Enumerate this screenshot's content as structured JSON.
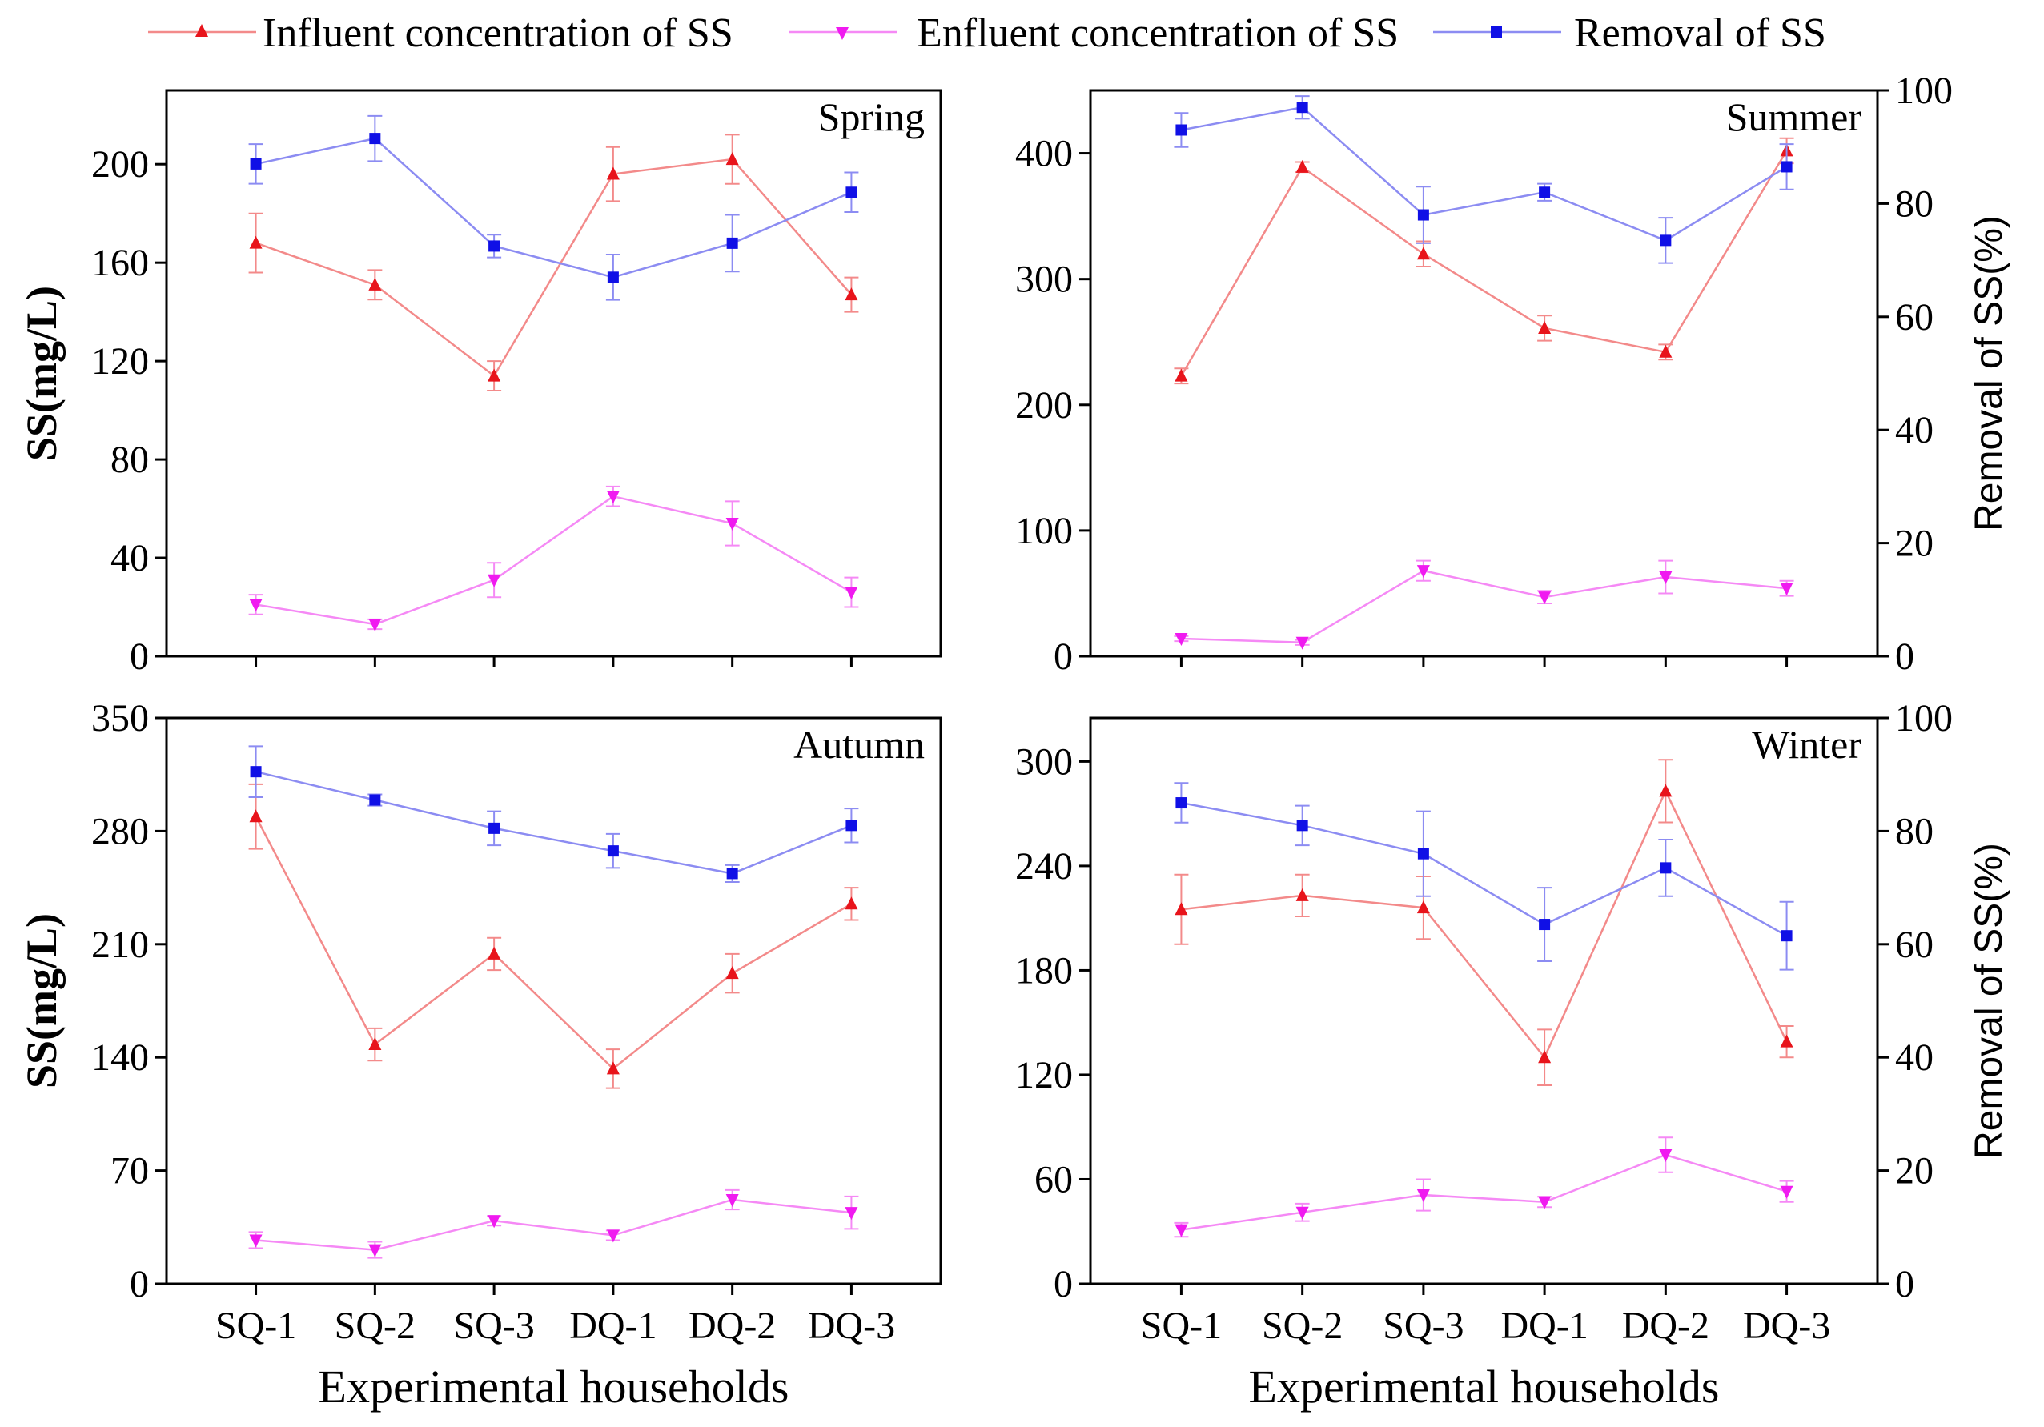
{
  "colors": {
    "influent": "#e8141b",
    "influent_line": "#f38a8a",
    "effluent": "#f01af0",
    "effluent_line": "#f589f5",
    "removal": "#1010e6",
    "removal_line": "#8c8cf2"
  },
  "legend": [
    {
      "key": "influent",
      "label": "Influent concentration of SS",
      "marker": "triangle-up"
    },
    {
      "key": "effluent",
      "label": "Enfluent concentration of SS",
      "marker": "triangle-down"
    },
    {
      "key": "removal",
      "label": "Removal of SS",
      "marker": "square"
    }
  ],
  "axes_text": {
    "xlabel": "Experimental households",
    "ylabel_left": "SS(mg/L)",
    "ylabel_right": "Removal of SS(%)"
  },
  "chart_data": [
    {
      "type": "line",
      "title": "Spring",
      "categories": [
        "SQ-1",
        "SQ-2",
        "SQ-3",
        "DQ-1",
        "DQ-2",
        "DQ-3"
      ],
      "ylim": [
        0,
        230
      ],
      "yticks": [
        0,
        40,
        80,
        120,
        160,
        200
      ],
      "y2lim": [
        0,
        100
      ],
      "y2ticks": [],
      "show_xticklabels": false,
      "show_xlabel": false,
      "show_ylabel_left": true,
      "show_ylabel_right": false,
      "series": [
        {
          "key": "influent",
          "name": "Influent concentration of SS",
          "axis": "left",
          "values": [
            168,
            151,
            114,
            196,
            202,
            147
          ],
          "errors": [
            12,
            6,
            6,
            11,
            10,
            7
          ]
        },
        {
          "key": "effluent",
          "name": "Enfluent concentration of SS",
          "axis": "left",
          "values": [
            21,
            13,
            31,
            65,
            54,
            26
          ],
          "errors": [
            4,
            2,
            7,
            4,
            9,
            6
          ]
        },
        {
          "key": "removal",
          "name": "Removal of SS",
          "axis": "right",
          "values": [
            87,
            91.5,
            72.5,
            67,
            73,
            82
          ],
          "errors": [
            3.5,
            4,
            2,
            4,
            5,
            3.5
          ]
        }
      ]
    },
    {
      "type": "line",
      "title": "Summer",
      "categories": [
        "SQ-1",
        "SQ-2",
        "SQ-3",
        "DQ-1",
        "DQ-2",
        "DQ-3"
      ],
      "ylim": [
        0,
        450
      ],
      "yticks": [
        0,
        100,
        200,
        300,
        400
      ],
      "y2lim": [
        0,
        100
      ],
      "y2ticks": [
        0,
        20,
        40,
        60,
        80,
        100
      ],
      "show_xticklabels": false,
      "show_xlabel": false,
      "show_ylabel_left": false,
      "show_ylabel_right": true,
      "series": [
        {
          "key": "influent",
          "name": "Influent concentration of SS",
          "axis": "left",
          "values": [
            223,
            389,
            320,
            261,
            242,
            402
          ],
          "errors": [
            6,
            4,
            10,
            10,
            6,
            10
          ]
        },
        {
          "key": "effluent",
          "name": "Enfluent concentration of SS",
          "axis": "left",
          "values": [
            14,
            11,
            68,
            47,
            63,
            54
          ],
          "errors": [
            2,
            2,
            8,
            5,
            13,
            6
          ]
        },
        {
          "key": "removal",
          "name": "Removal of SS",
          "axis": "right",
          "values": [
            93,
            97,
            78,
            82,
            73.5,
            86.5
          ],
          "errors": [
            3,
            2,
            5,
            1.5,
            4,
            4
          ]
        }
      ]
    },
    {
      "type": "line",
      "title": "Autumn",
      "categories": [
        "SQ-1",
        "SQ-2",
        "SQ-3",
        "DQ-1",
        "DQ-2",
        "DQ-3"
      ],
      "ylim": [
        0,
        350
      ],
      "yticks": [
        0,
        70,
        140,
        210,
        280,
        350
      ],
      "y2lim": [
        0,
        100
      ],
      "y2ticks": [],
      "show_xticklabels": true,
      "show_xlabel": true,
      "show_ylabel_left": true,
      "show_ylabel_right": false,
      "series": [
        {
          "key": "influent",
          "name": "Influent concentration of SS",
          "axis": "left",
          "values": [
            289,
            148,
            204,
            133,
            192,
            235
          ],
          "errors": [
            20,
            10,
            10,
            12,
            12,
            10
          ]
        },
        {
          "key": "effluent",
          "name": "Enfluent concentration of SS",
          "axis": "left",
          "values": [
            27,
            21,
            39,
            30,
            52,
            44
          ],
          "errors": [
            5,
            5,
            3,
            3,
            6,
            10
          ]
        },
        {
          "key": "removal",
          "name": "Removal of SS",
          "axis": "right",
          "values": [
            90.5,
            85.5,
            80.5,
            76.5,
            72.5,
            81
          ],
          "errors": [
            4.5,
            1,
            3,
            3,
            1.5,
            3
          ]
        }
      ]
    },
    {
      "type": "line",
      "title": "Winter",
      "categories": [
        "SQ-1",
        "SQ-2",
        "SQ-3",
        "DQ-1",
        "DQ-2",
        "DQ-3"
      ],
      "ylim": [
        0,
        325
      ],
      "yticks": [
        0,
        60,
        120,
        180,
        240,
        300
      ],
      "y2lim": [
        0,
        100
      ],
      "y2ticks": [
        0,
        20,
        40,
        60,
        80,
        100
      ],
      "show_xticklabels": true,
      "show_xlabel": true,
      "show_ylabel_left": false,
      "show_ylabel_right": true,
      "series": [
        {
          "key": "influent",
          "name": "Influent concentration of SS",
          "axis": "left",
          "values": [
            215,
            223,
            216,
            130,
            283,
            139
          ],
          "errors": [
            20,
            12,
            18,
            16,
            18,
            9
          ]
        },
        {
          "key": "effluent",
          "name": "Enfluent concentration of SS",
          "axis": "left",
          "values": [
            31,
            41,
            51,
            47,
            74,
            53
          ],
          "errors": [
            4,
            5,
            9,
            3,
            10,
            6
          ]
        },
        {
          "key": "removal",
          "name": "Removal of SS",
          "axis": "right",
          "values": [
            85,
            81,
            76,
            63.5,
            73.5,
            61.5
          ],
          "errors": [
            3.5,
            3.5,
            7.5,
            6.5,
            5,
            6
          ]
        }
      ]
    }
  ]
}
